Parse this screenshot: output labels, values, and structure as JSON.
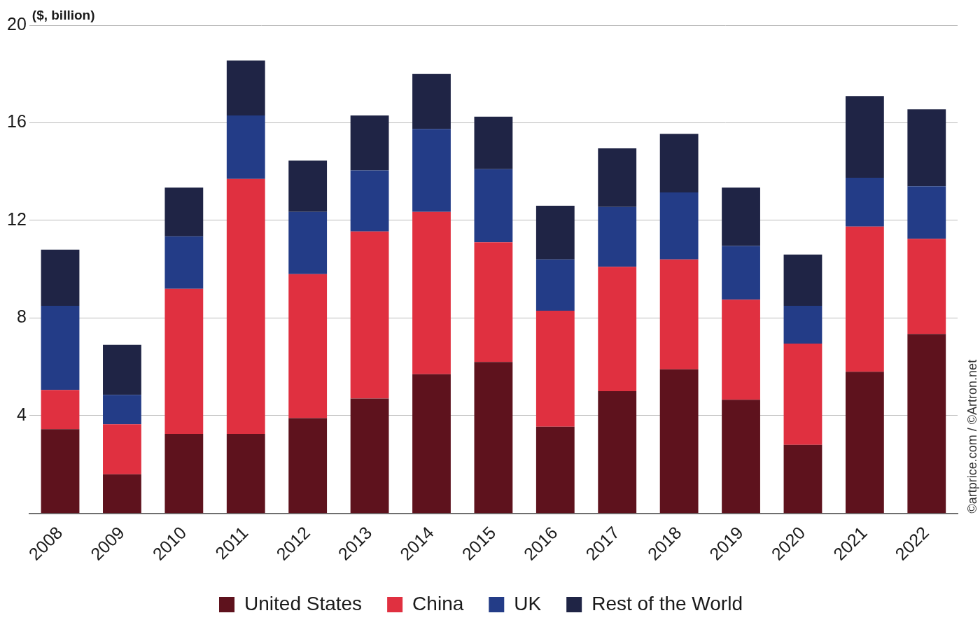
{
  "chart_data": {
    "type": "bar",
    "y_label": "($, billion)",
    "annotations": [
      "©artprice.com / ©Artron.net"
    ],
    "categories": [
      "2008",
      "2009",
      "2010",
      "2011",
      "2012",
      "2013",
      "2014",
      "2015",
      "2016",
      "2017",
      "2018",
      "2019",
      "2020",
      "2021",
      "2022"
    ],
    "series": [
      {
        "name": "United States",
        "color": "#5e121d",
        "values": [
          3.45,
          1.6,
          3.25,
          3.25,
          3.9,
          4.7,
          5.7,
          6.2,
          3.55,
          5.0,
          5.9,
          4.65,
          2.8,
          5.8,
          7.35
        ]
      },
      {
        "name": "China",
        "color": "#e03040",
        "values": [
          1.6,
          2.05,
          5.95,
          10.45,
          5.9,
          6.85,
          6.65,
          4.9,
          4.75,
          5.1,
          4.5,
          4.1,
          4.15,
          5.95,
          3.9
        ]
      },
      {
        "name": "UK",
        "color": "#233c87",
        "values": [
          3.45,
          1.2,
          2.15,
          2.6,
          2.55,
          2.5,
          3.4,
          3.0,
          2.1,
          2.45,
          2.75,
          2.2,
          1.55,
          2.0,
          2.15
        ]
      },
      {
        "name": "Rest of the World",
        "color": "#1f2445",
        "values": [
          2.3,
          2.05,
          2.0,
          2.25,
          2.1,
          2.25,
          2.25,
          2.15,
          2.2,
          2.4,
          2.4,
          2.4,
          2.1,
          3.35,
          3.15
        ]
      }
    ],
    "ylim": [
      0,
      20
    ],
    "yticks": [
      4,
      8,
      12,
      16,
      20
    ],
    "stacked": true,
    "grid": true,
    "legend": "bottom"
  }
}
